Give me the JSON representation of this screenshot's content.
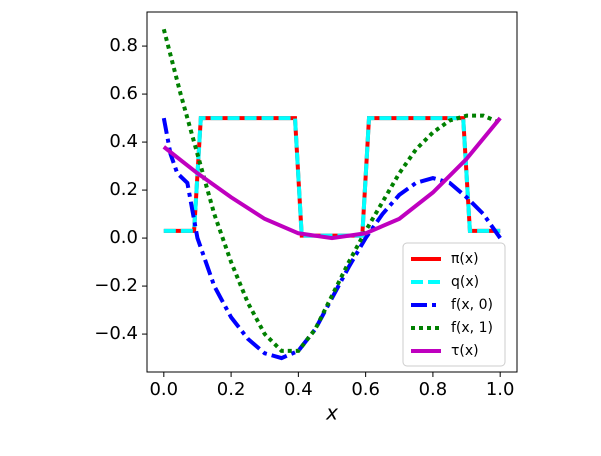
{
  "chart_data": {
    "type": "line",
    "xlabel": "x",
    "xlim": [
      -0.05,
      1.05
    ],
    "ylim": [
      -0.558,
      0.942
    ],
    "xticks": [
      {
        "value": 0,
        "label": "0.0"
      },
      {
        "value": 0.2,
        "label": "0.2"
      },
      {
        "value": 0.4,
        "label": "0.4"
      },
      {
        "value": 0.6,
        "label": "0.6"
      },
      {
        "value": 0.8,
        "label": "0.8"
      },
      {
        "value": 1,
        "label": "1.0"
      }
    ],
    "yticks": [
      {
        "value": -0.4,
        "label": "−0.4"
      },
      {
        "value": -0.2,
        "label": "−0.2"
      },
      {
        "value": 0,
        "label": "0.0"
      },
      {
        "value": 0.2,
        "label": "0.2"
      },
      {
        "value": 0.4,
        "label": "0.4"
      },
      {
        "value": 0.6,
        "label": "0.6"
      },
      {
        "value": 0.8,
        "label": "0.8"
      }
    ],
    "grid": false,
    "legend": "lower right",
    "series": [
      {
        "name": "π(x)",
        "color": "#ff0000",
        "dash": "solid",
        "x": [
          0,
          0.09,
          0.11,
          0.39,
          0.41,
          0.59,
          0.61,
          0.89,
          0.91,
          1.0
        ],
        "values": [
          0.03,
          0.03,
          0.5,
          0.5,
          0.01,
          0.01,
          0.5,
          0.5,
          0.03,
          0.03
        ]
      },
      {
        "name": "q(x)",
        "color": "#00ffff",
        "dash": "dashed",
        "x": [
          0,
          0.09,
          0.11,
          0.39,
          0.41,
          0.59,
          0.61,
          0.89,
          0.91,
          1.0
        ],
        "values": [
          0.03,
          0.03,
          0.5,
          0.5,
          0.01,
          0.01,
          0.5,
          0.5,
          0.03,
          0.03
        ]
      },
      {
        "name": "f(x, 0)",
        "color": "#0000ff",
        "dash": "dashdot",
        "x": [
          0,
          0.02,
          0.04,
          0.07,
          0.1,
          0.15,
          0.2,
          0.25,
          0.3,
          0.35,
          0.4,
          0.45,
          0.5,
          0.55,
          0.6,
          0.65,
          0.7,
          0.75,
          0.8,
          0.85,
          0.9,
          0.95,
          1.0
        ],
        "values": [
          0.5,
          0.35,
          0.27,
          0.23,
          0.0,
          -0.2,
          -0.33,
          -0.42,
          -0.48,
          -0.5,
          -0.47,
          -0.38,
          -0.25,
          -0.12,
          0.0,
          0.1,
          0.18,
          0.23,
          0.25,
          0.23,
          0.17,
          0.1,
          0.0
        ]
      },
      {
        "name": "f(x, 1)",
        "color": "#008000",
        "dash": "dotted",
        "x": [
          0,
          0.05,
          0.1,
          0.15,
          0.2,
          0.25,
          0.3,
          0.35,
          0.4,
          0.45,
          0.5,
          0.55,
          0.6,
          0.65,
          0.7,
          0.75,
          0.8,
          0.85,
          0.9,
          0.95,
          1.0
        ],
        "values": [
          0.87,
          0.6,
          0.35,
          0.1,
          -0.1,
          -0.27,
          -0.4,
          -0.47,
          -0.47,
          -0.38,
          -0.24,
          -0.1,
          0.03,
          0.15,
          0.27,
          0.37,
          0.44,
          0.49,
          0.51,
          0.51,
          0.48
        ]
      },
      {
        "name": "τ(x)",
        "color": "#bf00bf",
        "dash": "solid",
        "x": [
          0,
          0.1,
          0.2,
          0.3,
          0.4,
          0.5,
          0.6,
          0.7,
          0.8,
          0.9,
          1.0
        ],
        "values": [
          0.38,
          0.27,
          0.17,
          0.08,
          0.02,
          0.0,
          0.02,
          0.08,
          0.19,
          0.33,
          0.5
        ]
      }
    ]
  }
}
